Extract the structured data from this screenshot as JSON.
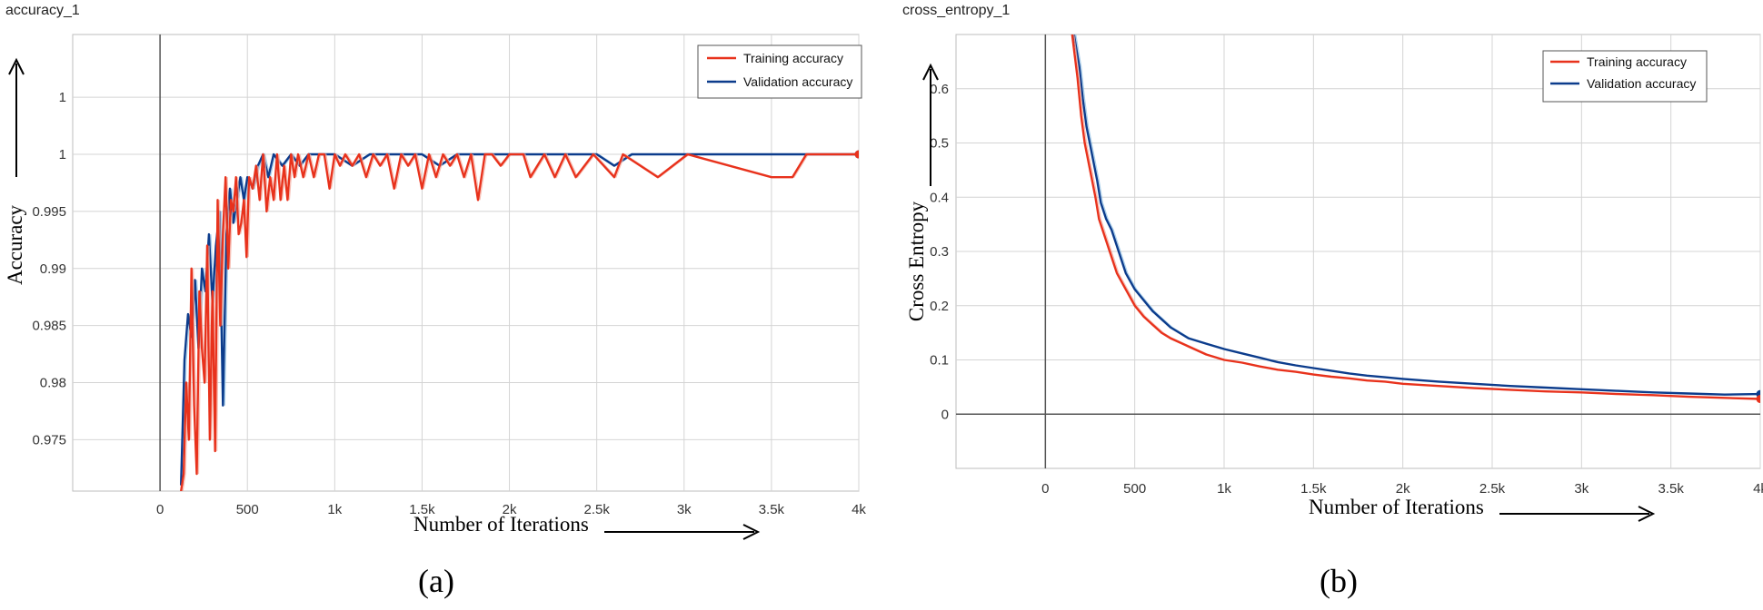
{
  "chart_data": [
    {
      "type": "line",
      "title": "accuracy_1",
      "xlabel": "Number of Iterations",
      "ylabel": "Accuracy",
      "caption": "(a)",
      "xlim": [
        -500,
        4000
      ],
      "ylim": [
        0.9705,
        1.0105
      ],
      "x_ticks": [
        0,
        500,
        1000,
        1500,
        2000,
        2500,
        3000,
        3500,
        4000
      ],
      "x_tick_labels": [
        "0",
        "500",
        "1k",
        "1.5k",
        "2k",
        "2.5k",
        "3k",
        "3.5k",
        "4k"
      ],
      "y_ticks": [
        0.975,
        0.98,
        0.985,
        0.99,
        0.995,
        1,
        1.005
      ],
      "y_tick_labels": [
        "0.975",
        "0.98",
        "0.985",
        "0.99",
        "0.995",
        "1",
        "1"
      ],
      "grid": true,
      "legend_position": "top-right",
      "series": [
        {
          "name": "Training accuracy",
          "color": "#e8321c",
          "x": [
            120,
            135,
            150,
            165,
            180,
            195,
            210,
            225,
            240,
            255,
            270,
            285,
            300,
            315,
            330,
            345,
            360,
            375,
            390,
            405,
            420,
            435,
            450,
            465,
            480,
            495,
            510,
            530,
            550,
            570,
            590,
            610,
            630,
            650,
            670,
            690,
            710,
            730,
            750,
            770,
            790,
            820,
            850,
            880,
            910,
            940,
            970,
            1000,
            1030,
            1060,
            1100,
            1140,
            1180,
            1220,
            1260,
            1300,
            1340,
            1380,
            1420,
            1460,
            1500,
            1540,
            1580,
            1620,
            1660,
            1700,
            1740,
            1780,
            1820,
            1860,
            1900,
            1950,
            2000,
            2080,
            2120,
            2200,
            2260,
            2320,
            2380,
            2480,
            2600,
            2650,
            2850,
            3020,
            3500,
            3620,
            3700,
            3800,
            3900,
            4000
          ],
          "y": [
            0.9705,
            0.972,
            0.98,
            0.975,
            0.99,
            0.978,
            0.972,
            0.988,
            0.983,
            0.98,
            0.992,
            0.975,
            0.988,
            0.974,
            0.996,
            0.985,
            0.993,
            0.998,
            0.99,
            0.996,
            0.995,
            0.998,
            0.993,
            0.994,
            0.996,
            0.991,
            0.998,
            0.997,
            0.999,
            0.996,
            1.0,
            0.995,
            0.998,
            0.996,
            1.0,
            0.996,
            0.999,
            0.996,
            1.0,
            0.998,
            1.0,
            0.998,
            1.0,
            0.998,
            1.0,
            1.0,
            0.997,
            1.0,
            0.999,
            1.0,
            0.999,
            1.0,
            0.998,
            1.0,
            0.999,
            1.0,
            0.997,
            1.0,
            0.999,
            1.0,
            0.997,
            1.0,
            0.998,
            1.0,
            0.999,
            1.0,
            0.998,
            1.0,
            0.996,
            1.0,
            1.0,
            0.999,
            1.0,
            1.0,
            0.998,
            1.0,
            0.998,
            1.0,
            0.998,
            1.0,
            0.998,
            1.0,
            0.998,
            1.0,
            0.998,
            0.998,
            1.0,
            1.0,
            1.0,
            1.0
          ]
        },
        {
          "name": "Validation accuracy",
          "color": "#0c3c8c",
          "x": [
            120,
            140,
            160,
            180,
            200,
            220,
            240,
            260,
            280,
            300,
            320,
            340,
            360,
            380,
            400,
            420,
            440,
            460,
            480,
            500,
            530,
            560,
            590,
            620,
            650,
            700,
            750,
            800,
            850,
            900,
            1000,
            1100,
            1200,
            1300,
            1400,
            1500,
            1600,
            1700,
            1800,
            1900,
            2000,
            2100,
            2200,
            2300,
            2400,
            2500,
            2600,
            2700,
            3000,
            3500,
            3700,
            3800,
            4000
          ],
          "y": [
            0.971,
            0.982,
            0.986,
            0.984,
            0.989,
            0.983,
            0.99,
            0.988,
            0.993,
            0.987,
            0.992,
            0.995,
            0.978,
            0.993,
            0.997,
            0.994,
            0.996,
            0.998,
            0.996,
            0.998,
            0.997,
            0.999,
            1.0,
            0.998,
            1.0,
            0.999,
            1.0,
            0.999,
            1.0,
            1.0,
            1.0,
            0.999,
            1.0,
            1.0,
            1.0,
            1.0,
            0.999,
            1.0,
            1.0,
            1.0,
            1.0,
            1.0,
            1.0,
            1.0,
            1.0,
            1.0,
            0.999,
            1.0,
            1.0,
            1.0,
            1.0,
            1.0,
            1.0
          ]
        }
      ]
    },
    {
      "type": "line",
      "title": "cross_entropy_1",
      "xlabel": "Number of Iterations",
      "ylabel": "Cross Entropy",
      "caption": "(b)",
      "xlim": [
        -500,
        4000
      ],
      "ylim": [
        -0.1,
        0.7
      ],
      "x_ticks": [
        0,
        500,
        1000,
        1500,
        2000,
        2500,
        3000,
        3500,
        4000
      ],
      "x_tick_labels": [
        "0",
        "500",
        "1k",
        "1.5k",
        "2k",
        "2.5k",
        "3k",
        "3.5k",
        "4k"
      ],
      "y_ticks": [
        0,
        0.1,
        0.2,
        0.3,
        0.4,
        0.5,
        0.6
      ],
      "y_tick_labels": [
        "0",
        "0.1",
        "0.2",
        "0.3",
        "0.4",
        "0.5",
        "0.6"
      ],
      "grid": true,
      "legend_position": "top-right",
      "series": [
        {
          "name": "Training accuracy",
          "color": "#e8321c",
          "x": [
            150,
            180,
            200,
            220,
            250,
            280,
            300,
            330,
            360,
            400,
            450,
            500,
            550,
            600,
            650,
            700,
            800,
            900,
            1000,
            1100,
            1200,
            1300,
            1400,
            1500,
            1600,
            1700,
            1800,
            1900,
            2000,
            2200,
            2400,
            2600,
            2800,
            3000,
            3200,
            3400,
            3600,
            3800,
            4000
          ],
          "y": [
            0.7,
            0.62,
            0.55,
            0.5,
            0.45,
            0.4,
            0.36,
            0.33,
            0.3,
            0.26,
            0.23,
            0.2,
            0.18,
            0.165,
            0.15,
            0.14,
            0.125,
            0.11,
            0.1,
            0.095,
            0.088,
            0.082,
            0.078,
            0.073,
            0.069,
            0.066,
            0.062,
            0.06,
            0.056,
            0.052,
            0.048,
            0.045,
            0.042,
            0.04,
            0.037,
            0.035,
            0.032,
            0.03,
            0.028
          ]
        },
        {
          "name": "Validation accuracy",
          "color": "#0c3c8c",
          "x": [
            160,
            190,
            210,
            230,
            260,
            290,
            310,
            340,
            370,
            400,
            450,
            500,
            550,
            600,
            650,
            700,
            800,
            900,
            1000,
            1100,
            1200,
            1300,
            1400,
            1500,
            1600,
            1700,
            1800,
            1900,
            2000,
            2200,
            2400,
            2600,
            2800,
            3000,
            3200,
            3400,
            3600,
            3800,
            4000
          ],
          "y": [
            0.7,
            0.64,
            0.58,
            0.53,
            0.48,
            0.43,
            0.39,
            0.36,
            0.34,
            0.31,
            0.26,
            0.23,
            0.21,
            0.19,
            0.175,
            0.16,
            0.14,
            0.13,
            0.12,
            0.112,
            0.104,
            0.096,
            0.09,
            0.085,
            0.08,
            0.075,
            0.071,
            0.068,
            0.065,
            0.06,
            0.056,
            0.052,
            0.049,
            0.046,
            0.043,
            0.04,
            0.038,
            0.036,
            0.037
          ]
        }
      ]
    }
  ]
}
